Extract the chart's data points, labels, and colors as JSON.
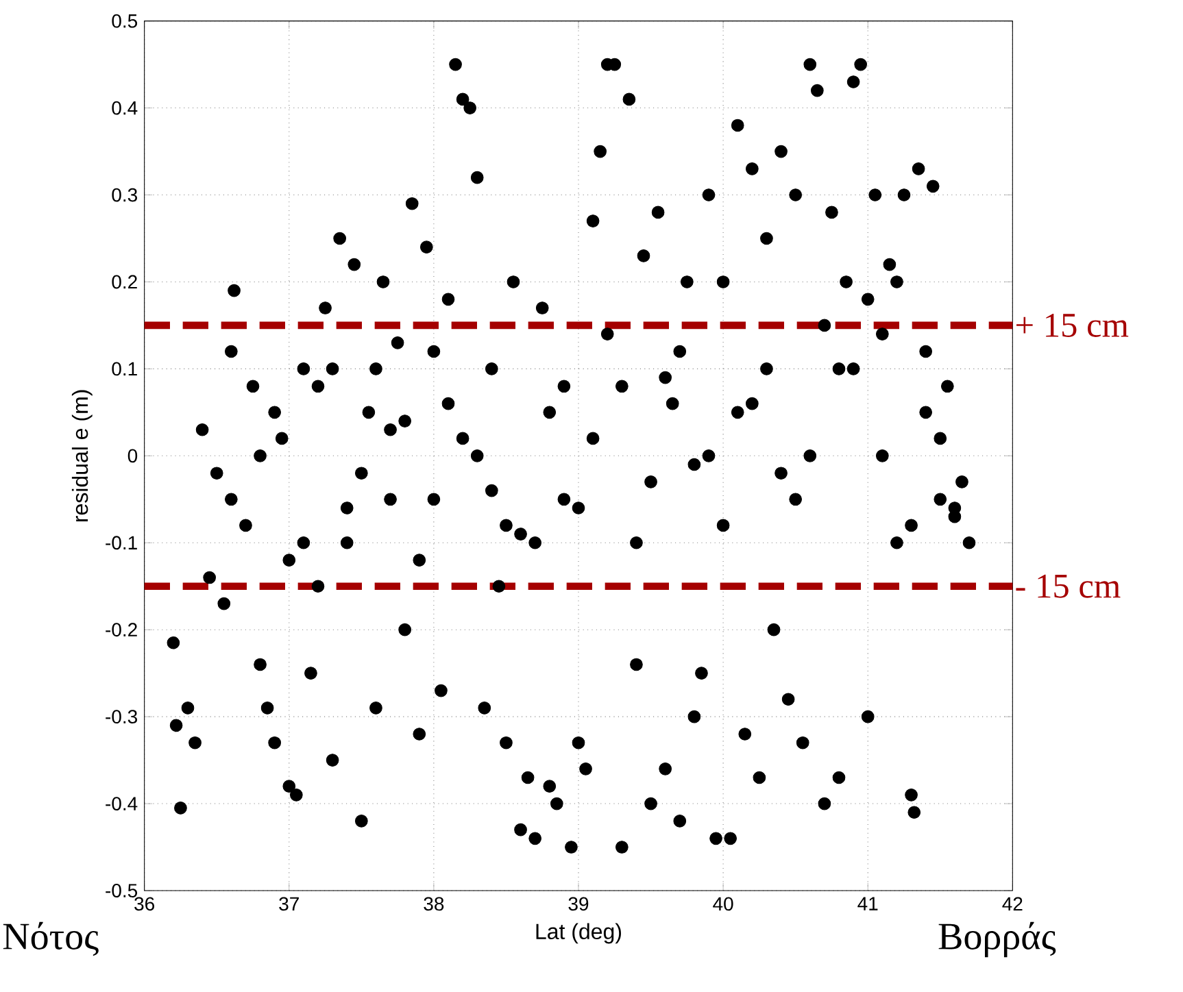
{
  "chart_data": {
    "type": "scatter",
    "xlabel": "Lat (deg)",
    "ylabel": "residual e (m)",
    "x": [
      36.2,
      36.22,
      36.25,
      36.3,
      36.35,
      36.4,
      36.45,
      36.5,
      36.55,
      36.6,
      36.62,
      36.7,
      36.75,
      36.8,
      36.85,
      36.9,
      36.95,
      37.0,
      37.05,
      37.1,
      37.15,
      37.2,
      37.25,
      37.3,
      37.35,
      37.4,
      37.45,
      37.5,
      37.55,
      37.6,
      37.65,
      37.7,
      37.75,
      37.8,
      37.85,
      37.9,
      37.95,
      38.0,
      38.05,
      38.1,
      38.15,
      38.2,
      38.25,
      38.3,
      38.35,
      38.4,
      38.45,
      38.5,
      38.55,
      38.6,
      38.65,
      38.7,
      38.75,
      38.8,
      38.85,
      38.9,
      38.95,
      39.0,
      39.05,
      39.1,
      39.15,
      39.2,
      39.25,
      39.3,
      39.35,
      39.4,
      39.45,
      39.5,
      39.55,
      39.6,
      39.65,
      39.7,
      39.75,
      39.8,
      39.85,
      39.9,
      39.95,
      40.0,
      40.05,
      40.1,
      40.15,
      40.2,
      40.25,
      40.3,
      40.35,
      40.4,
      40.45,
      40.5,
      40.55,
      40.6,
      40.65,
      40.7,
      40.75,
      40.8,
      40.85,
      40.9,
      40.95,
      41.0,
      41.05,
      41.1,
      41.15,
      41.2,
      41.25,
      41.3,
      41.32,
      41.35,
      41.4,
      41.45,
      41.5,
      41.55,
      41.6,
      41.65,
      41.7,
      36.6,
      36.9,
      37.1,
      37.3,
      37.5,
      37.7,
      37.9,
      38.1,
      38.3,
      38.5,
      38.7,
      38.9,
      39.1,
      39.3,
      39.5,
      39.7,
      39.9,
      40.1,
      40.3,
      40.5,
      40.7,
      40.9,
      41.1,
      41.3,
      41.5,
      36.8,
      37.0,
      37.2,
      37.4,
      37.6,
      37.8,
      38.0,
      38.2,
      38.4,
      38.6,
      38.8,
      39.0,
      39.2,
      39.4,
      39.6,
      39.8,
      40.0,
      40.2,
      40.4,
      40.6,
      40.8,
      41.0,
      41.2,
      41.4,
      41.6
    ],
    "values": [
      -0.215,
      -0.31,
      -0.405,
      -0.29,
      -0.33,
      0.03,
      -0.14,
      -0.02,
      -0.17,
      0.12,
      0.19,
      -0.08,
      0.08,
      -0.24,
      -0.29,
      -0.33,
      0.02,
      -0.38,
      -0.39,
      0.1,
      -0.25,
      -0.15,
      0.17,
      -0.35,
      0.25,
      -0.1,
      0.22,
      -0.42,
      0.05,
      -0.29,
      0.2,
      -0.05,
      0.13,
      -0.2,
      0.29,
      -0.32,
      0.24,
      -0.05,
      -0.27,
      0.18,
      0.45,
      0.41,
      0.4,
      0.32,
      -0.29,
      0.1,
      -0.15,
      -0.33,
      0.2,
      -0.43,
      -0.37,
      -0.44,
      0.17,
      -0.38,
      -0.4,
      0.08,
      -0.45,
      -0.33,
      -0.36,
      0.27,
      0.35,
      0.45,
      0.45,
      -0.45,
      0.41,
      -0.24,
      0.23,
      -0.4,
      0.28,
      -0.36,
      0.06,
      -0.42,
      0.2,
      -0.3,
      -0.25,
      0.3,
      -0.44,
      0.2,
      -0.44,
      0.38,
      -0.32,
      0.33,
      -0.37,
      0.25,
      -0.2,
      0.35,
      -0.28,
      0.3,
      -0.33,
      0.45,
      0.42,
      -0.4,
      0.28,
      -0.37,
      0.2,
      0.43,
      0.45,
      -0.3,
      0.3,
      0.14,
      0.22,
      -0.1,
      0.3,
      -0.39,
      -0.41,
      0.33,
      0.05,
      0.31,
      -0.05,
      0.08,
      -0.07,
      -0.03,
      -0.1,
      -0.05,
      0.05,
      -0.1,
      0.1,
      -0.02,
      0.03,
      -0.12,
      0.06,
      0.0,
      -0.08,
      -0.1,
      -0.05,
      0.02,
      0.08,
      -0.03,
      0.12,
      0.0,
      0.05,
      0.1,
      -0.05,
      0.15,
      0.1,
      0.0,
      -0.08,
      0.02,
      0.0,
      -0.12,
      0.08,
      -0.06,
      0.1,
      0.04,
      0.12,
      0.02,
      -0.04,
      -0.09,
      0.05,
      -0.06,
      0.14,
      -0.1,
      0.09,
      -0.01,
      -0.08,
      0.06,
      -0.02,
      0.0,
      0.1,
      0.18,
      0.2,
      0.12,
      -0.06
    ],
    "color": "#000000",
    "marker": "circle",
    "xlim": [
      36,
      42
    ],
    "xticks": [
      36,
      37,
      38,
      39,
      40,
      41,
      42
    ],
    "ylim": [
      -0.5,
      0.5
    ],
    "yticks": [
      -0.5,
      -0.4,
      -0.3,
      -0.2,
      -0.1,
      0,
      0.1,
      0.2,
      0.3,
      0.4,
      0.5
    ],
    "grid": true,
    "ref_lines": [
      {
        "axis": "y",
        "value": 0.15,
        "label": "+ 15 cm",
        "color": "#a50000",
        "line_style": "dashed"
      },
      {
        "axis": "y",
        "value": -0.15,
        "label": "- 15 cm",
        "color": "#a50000",
        "line_style": "dashed"
      }
    ],
    "annotations": [
      "Νότος",
      "Βορράς"
    ]
  }
}
